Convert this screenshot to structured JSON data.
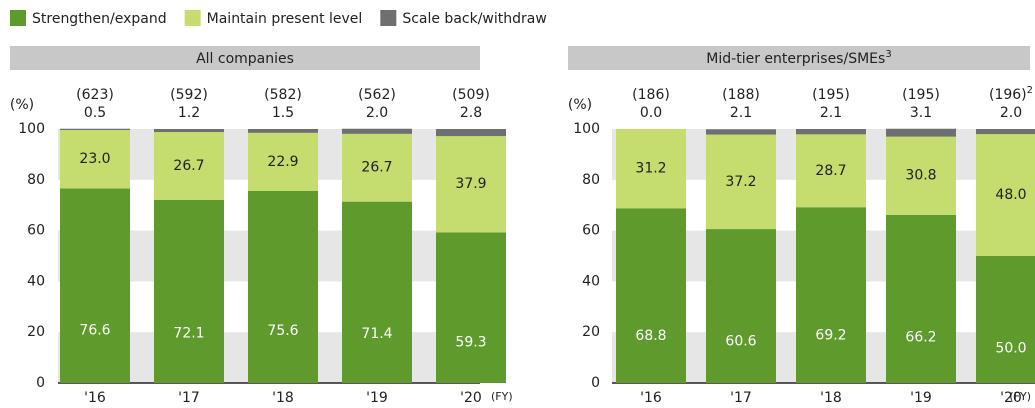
{
  "chart_data": [
    {
      "type": "stacked_bar",
      "title": "All companies",
      "y_label": "(%)",
      "x_label": "(FY)",
      "categories": [
        "'16",
        "'17",
        "'18",
        "'19",
        "'20"
      ],
      "sample_sizes": [
        "(623)",
        "(592)",
        "(582)",
        "(562)",
        "(509)"
      ],
      "series": [
        {
          "name": "Strengthen/expand",
          "color": "#5e9b2c",
          "values": [
            76.6,
            72.1,
            75.6,
            71.4,
            59.3
          ],
          "value_labels": [
            "76.6",
            "72.1",
            "75.6",
            "71.4",
            "59.3"
          ]
        },
        {
          "name": "Maintain present level",
          "color": "#c5dc6e",
          "values": [
            23.0,
            26.7,
            22.9,
            26.7,
            37.9
          ],
          "value_labels": [
            "23.0",
            "26.7",
            "22.9",
            "26.7",
            "37.9"
          ]
        },
        {
          "name": "Scale back/withdraw",
          "color": "#6e6f71",
          "values": [
            0.5,
            1.2,
            1.5,
            2.0,
            2.8
          ],
          "value_labels": [
            "0.5",
            "1.2",
            "1.5",
            "2.0",
            "2.8"
          ]
        }
      ],
      "ylim": [
        0,
        100
      ],
      "yticks": [
        0,
        20,
        40,
        60,
        80,
        100
      ]
    },
    {
      "type": "stacked_bar",
      "title": "Mid-tier enterprises/SMEs",
      "title_note": "3",
      "y_label": "(%)",
      "x_label": "(FY)",
      "categories": [
        "'16",
        "'17",
        "'18",
        "'19",
        "'20"
      ],
      "sample_sizes": [
        "(186)",
        "(188)",
        "(195)",
        "(195)",
        "(196)"
      ],
      "sample_size_notes": [
        null,
        null,
        null,
        null,
        "2"
      ],
      "series": [
        {
          "name": "Strengthen/expand",
          "color": "#5e9b2c",
          "values": [
            68.8,
            60.6,
            69.2,
            66.2,
            50.0
          ],
          "value_labels": [
            "68.8",
            "60.6",
            "69.2",
            "66.2",
            "50.0"
          ]
        },
        {
          "name": "Maintain present level",
          "color": "#c5dc6e",
          "values": [
            31.2,
            37.2,
            28.7,
            30.8,
            48.0
          ],
          "value_labels": [
            "31.2",
            "37.2",
            "28.7",
            "30.8",
            "48.0"
          ]
        },
        {
          "name": "Scale back/withdraw",
          "color": "#6e6f71",
          "values": [
            0.0,
            2.1,
            2.1,
            3.1,
            2.0
          ],
          "value_labels": [
            "0.0",
            "2.1",
            "2.1",
            "3.1",
            "2.0"
          ]
        }
      ],
      "ylim": [
        0,
        100
      ],
      "yticks": [
        0,
        20,
        40,
        60,
        80,
        100
      ]
    }
  ]
}
